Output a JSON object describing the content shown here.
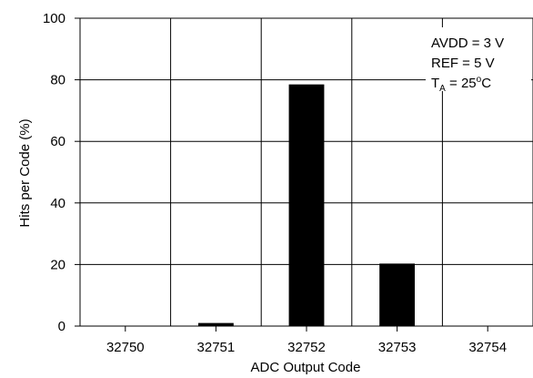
{
  "chart_data": {
    "type": "bar",
    "categories": [
      "32750",
      "32751",
      "32752",
      "32753",
      "32754"
    ],
    "values": [
      0,
      1,
      78.5,
      20.3,
      0
    ],
    "xlabel": "ADC Output Code",
    "ylabel": "Hits per Code (%)",
    "ylim": [
      0,
      100
    ],
    "yticks": [
      "0",
      "20",
      "40",
      "60",
      "80",
      "100"
    ],
    "grid": true,
    "annotations": [
      "AVDD = 3 V",
      "REF = 5 V"
    ],
    "temperature_annotation": {
      "base": "T",
      "subscript": "A",
      "equals_value": " = 25",
      "degree": "o",
      "unit": "C"
    },
    "colors": {
      "bar": "#000000",
      "axis": "#000000",
      "grid": "#000000",
      "background": "#ffffff"
    }
  }
}
